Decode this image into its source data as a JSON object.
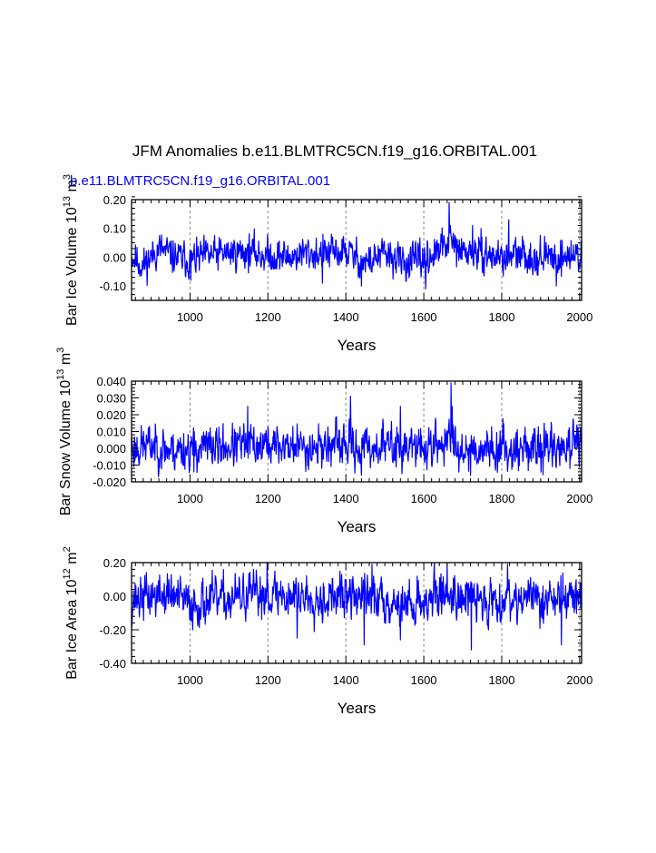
{
  "figure": {
    "main_title": "JFM Anomalies b.e11.BLMTRC5CN.f19_g16.ORBITAL.001",
    "legend_label": "b.e11.BLMTRC5CN.f19_g16.ORBITAL.001",
    "line_color": "#0000ff",
    "grid_color": "#888888"
  },
  "chart_data": [
    {
      "type": "line",
      "title": "",
      "xlabel": "Years",
      "ylabel": "Bar Ice Volume",
      "ylabel_unit": "10^13 m^3",
      "ylabel_parts": [
        "Bar Ice Volume 10",
        "13",
        " m",
        "3"
      ],
      "xlim": [
        850,
        2005
      ],
      "ylim": [
        -0.15,
        0.2
      ],
      "xticks": [
        1000,
        1200,
        1400,
        1600,
        1800,
        2000
      ],
      "xtick_labels": [
        "1000",
        "1200",
        "1400",
        "1600",
        "1800",
        "2000"
      ],
      "yticks": [
        0.2,
        0.1,
        0.0,
        -0.1
      ],
      "ytick_labels": [
        "0.20",
        "0.10",
        "0.00",
        "-0.10"
      ],
      "grid_x": [
        1000,
        1200,
        1400,
        1600,
        1800,
        2000
      ],
      "series": [
        {
          "name": "b.e11.BLMTRC5CN.f19_g16.ORBITAL.001",
          "x_start": 850,
          "x_end": 2005,
          "seed": 11,
          "noise": 0.028,
          "clip": [
            -0.11,
            0.19
          ],
          "anchors": [
            [
              850,
              0.005
            ],
            [
              880,
              -0.03
            ],
            [
              920,
              0.03
            ],
            [
              960,
              0.0
            ],
            [
              1000,
              -0.01
            ],
            [
              1050,
              0.005
            ],
            [
              1100,
              0.015
            ],
            [
              1150,
              0.02
            ],
            [
              1200,
              0.005
            ],
            [
              1250,
              0.0
            ],
            [
              1300,
              0.015
            ],
            [
              1350,
              0.01
            ],
            [
              1400,
              0.02
            ],
            [
              1450,
              -0.02
            ],
            [
              1500,
              0.01
            ],
            [
              1550,
              -0.02
            ],
            [
              1600,
              -0.01
            ],
            [
              1640,
              0.02
            ],
            [
              1665,
              0.06
            ],
            [
              1690,
              0.02
            ],
            [
              1750,
              0.01
            ],
            [
              1800,
              0.0
            ],
            [
              1850,
              0.005
            ],
            [
              1900,
              0.0
            ],
            [
              1950,
              0.0
            ],
            [
              2005,
              0.01
            ]
          ],
          "spikes": [
            [
              1665,
              0.19
            ],
            [
              1668,
              0.11
            ],
            [
              1818,
              0.13
            ],
            [
              1725,
              0.11
            ],
            [
              1940,
              -0.1
            ],
            [
              1605,
              -0.11
            ],
            [
              1440,
              -0.1
            ],
            [
              1340,
              -0.09
            ],
            [
              1002,
              -0.08
            ]
          ]
        }
      ]
    },
    {
      "type": "line",
      "title": "",
      "xlabel": "Years",
      "ylabel": "Bar Snow Volume",
      "ylabel_unit": "10^13 m^3",
      "ylabel_parts": [
        "Bar Snow Volume 10",
        "13",
        " m",
        "3"
      ],
      "xlim": [
        850,
        2005
      ],
      "ylim": [
        -0.02,
        0.04
      ],
      "xticks": [
        1000,
        1200,
        1400,
        1600,
        1800,
        2000
      ],
      "xtick_labels": [
        "1000",
        "1200",
        "1400",
        "1600",
        "1800",
        "2000"
      ],
      "yticks": [
        0.04,
        0.03,
        0.02,
        0.01,
        0.0,
        -0.01,
        -0.02
      ],
      "ytick_labels": [
        "0.040",
        "0.030",
        "0.020",
        "0.010",
        "0.000",
        "-0.010",
        "-0.020"
      ],
      "grid_x": [
        1000,
        1200,
        1400,
        1600,
        1800,
        2000
      ],
      "series": [
        {
          "name": "b.e11.BLMTRC5CN.f19_g16.ORBITAL.001",
          "x_start": 850,
          "x_end": 2005,
          "seed": 23,
          "noise": 0.0058,
          "clip": [
            -0.017,
            0.038
          ],
          "anchors": [
            [
              850,
              0.0
            ],
            [
              900,
              0.002
            ],
            [
              950,
              -0.001
            ],
            [
              1000,
              0.0
            ],
            [
              1100,
              0.001
            ],
            [
              1150,
              0.002
            ],
            [
              1200,
              0.002
            ],
            [
              1300,
              0.001
            ],
            [
              1400,
              0.002
            ],
            [
              1450,
              0.0
            ],
            [
              1500,
              0.002
            ],
            [
              1600,
              0.0
            ],
            [
              1650,
              0.003
            ],
            [
              1670,
              0.005
            ],
            [
              1700,
              0.0
            ],
            [
              1800,
              0.0
            ],
            [
              1900,
              0.0
            ],
            [
              2005,
              0.002
            ]
          ],
          "spikes": [
            [
              1670,
              0.039
            ],
            [
              1673,
              0.025
            ],
            [
              1412,
              0.031
            ],
            [
              1148,
              0.025
            ],
            [
              1540,
              0.025
            ],
            [
              1440,
              -0.016
            ],
            [
              1010,
              -0.014
            ],
            [
              1720,
              -0.016
            ],
            [
              1975,
              -0.012
            ]
          ]
        }
      ]
    },
    {
      "type": "line",
      "title": "",
      "xlabel": "Years",
      "ylabel": "Bar Ice Area",
      "ylabel_unit": "10^12 m^2",
      "ylabel_parts": [
        "Bar Ice Area 10",
        "12",
        " m",
        "2"
      ],
      "xlim": [
        850,
        2005
      ],
      "ylim": [
        -0.4,
        0.2
      ],
      "xticks": [
        1000,
        1200,
        1400,
        1600,
        1800,
        2000
      ],
      "xtick_labels": [
        "1000",
        "1200",
        "1400",
        "1600",
        "1800",
        "2000"
      ],
      "yticks": [
        0.2,
        0.0,
        -0.2,
        -0.4
      ],
      "ytick_labels": [
        "0.20",
        "0.00",
        "-0.20",
        "-0.40"
      ],
      "grid_x": [
        1000,
        1200,
        1400,
        1600,
        1800,
        2000
      ],
      "series": [
        {
          "name": "b.e11.BLMTRC5CN.f19_g16.ORBITAL.001",
          "x_start": 850,
          "x_end": 2005,
          "seed": 37,
          "noise": 0.062,
          "clip": [
            -0.32,
            0.195
          ],
          "anchors": [
            [
              850,
              -0.02
            ],
            [
              900,
              0.0
            ],
            [
              950,
              0.01
            ],
            [
              1000,
              -0.05
            ],
            [
              1050,
              -0.03
            ],
            [
              1100,
              -0.02
            ],
            [
              1150,
              0.0
            ],
            [
              1200,
              0.02
            ],
            [
              1250,
              0.0
            ],
            [
              1300,
              0.0
            ],
            [
              1350,
              -0.01
            ],
            [
              1400,
              0.0
            ],
            [
              1450,
              0.0
            ],
            [
              1500,
              -0.02
            ],
            [
              1550,
              -0.05
            ],
            [
              1600,
              -0.03
            ],
            [
              1650,
              0.02
            ],
            [
              1700,
              0.0
            ],
            [
              1750,
              -0.03
            ],
            [
              1800,
              -0.02
            ],
            [
              1850,
              0.0
            ],
            [
              1900,
              -0.02
            ],
            [
              1950,
              -0.01
            ],
            [
              2005,
              0.0
            ]
          ],
          "spikes": [
            [
              1722,
              -0.32
            ],
            [
              1447,
              -0.29
            ],
            [
              1953,
              -0.29
            ],
            [
              1198,
              0.2
            ],
            [
              1467,
              0.19
            ],
            [
              1660,
              0.19
            ],
            [
              1815,
              0.19
            ],
            [
              1275,
              -0.25
            ],
            [
              1540,
              -0.26
            ]
          ]
        }
      ]
    }
  ]
}
